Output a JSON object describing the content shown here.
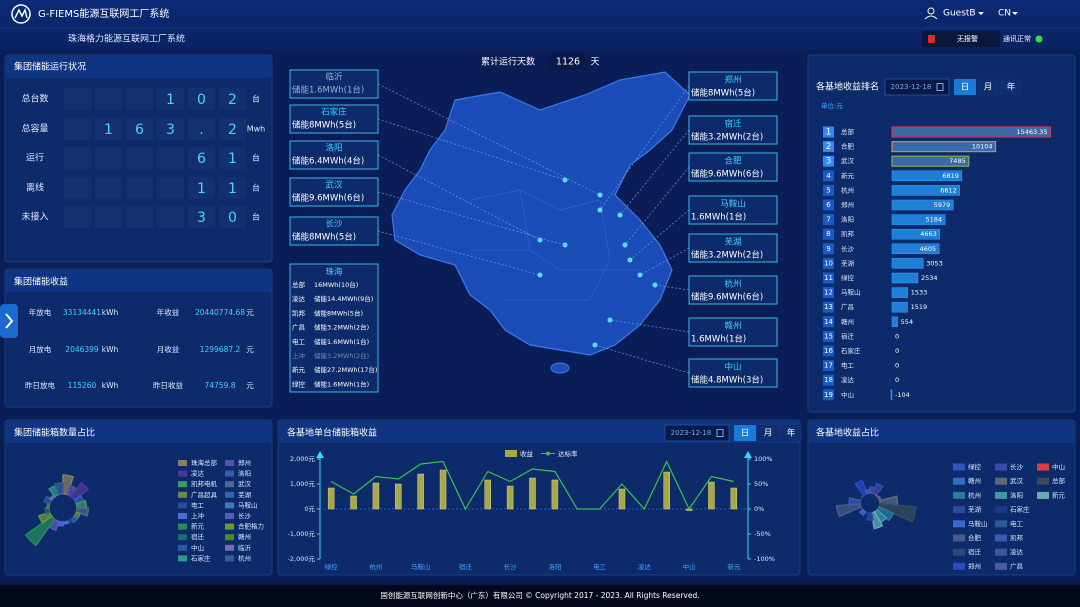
{
  "header": {
    "brand": "G-FIEMS能源互联网工厂系统",
    "subtitle": "珠海格力能源互联网工厂系统",
    "user": "GuestB",
    "language": "CN",
    "alarm": "无报警",
    "communication": "通讯正常"
  },
  "status_panel": {
    "title": "集团储能运行状况",
    "rows": [
      {
        "label": "总台数",
        "digits": [
          "1",
          "0",
          "2"
        ],
        "unit": "台"
      },
      {
        "label": "总容量",
        "digits": [
          "1",
          "6",
          "3",
          ".",
          "2"
        ],
        "unit": "Mwh"
      },
      {
        "label": "运行",
        "digits": [
          "6",
          "1"
        ],
        "unit": "台"
      },
      {
        "label": "离线",
        "digits": [
          "1",
          "1"
        ],
        "unit": "台"
      },
      {
        "label": "未接入",
        "digits": [
          "3",
          "0"
        ],
        "unit": "台"
      }
    ]
  },
  "income_panel": {
    "title": "集团储能收益",
    "items": [
      {
        "label": "年放电",
        "value": 33134441,
        "unit": "kWh"
      },
      {
        "label": "年收益",
        "value": 20440774.68,
        "unit": "元"
      },
      {
        "label": "月放电",
        "value": 2046399,
        "unit": "kWh"
      },
      {
        "label": "月收益",
        "value": 1299687.2,
        "unit": "元"
      },
      {
        "label": "昨日放电",
        "value": 115260,
        "unit": "kWh"
      },
      {
        "label": "昨日收益",
        "value": 74759.8,
        "unit": "元"
      }
    ]
  },
  "map": {
    "days_label": "累计运行天数",
    "days": 1126,
    "days_unit": "天",
    "left_callouts": [
      {
        "city": "临沂",
        "text": "储能1.6MWh(1台)"
      },
      {
        "city": "石家庄",
        "text": "储能8MWh(5台)"
      },
      {
        "city": "洛阳",
        "text": "储能6.4MWh(4台)"
      },
      {
        "city": "武汉",
        "text": "储能9.6MWh(6台)"
      },
      {
        "city": "长沙",
        "text": "储能8MWh(5台)"
      }
    ],
    "right_callouts": [
      {
        "city": "郑州",
        "text": "储能8MWh(5台)"
      },
      {
        "city": "宿迁",
        "text": "储能3.2MWh(2台)"
      },
      {
        "city": "合肥",
        "text": "储能9.6MWh(6台)"
      },
      {
        "city": "马鞍山",
        "text": "1.6MWh(1台)"
      },
      {
        "city": "芜湖",
        "text": "储能3.2MWh(2台)"
      },
      {
        "city": "杭州",
        "text": "储能9.6MWh(6台)"
      },
      {
        "city": "赣州",
        "text": "1.6MWh(1台)"
      },
      {
        "city": "中山",
        "text": "储能4.8MWh(3台)"
      }
    ],
    "zhuhai": {
      "city": "珠海",
      "rows": [
        {
          "site": "总部",
          "text": "16MWh(10台)"
        },
        {
          "site": "凌达",
          "text": "储能14.4MWh(9台)"
        },
        {
          "site": "凯邦",
          "text": "储能8MWh(5台)"
        },
        {
          "site": "广昌",
          "text": "储能3.2MWh(2台)"
        },
        {
          "site": "电工",
          "text": "储能1.6MWh(1台)"
        },
        {
          "site": "上冲",
          "text": "储能3.2MWh(2台)"
        },
        {
          "site": "新元",
          "text": "储能27.2MWh(17台)"
        },
        {
          "site": "绿控",
          "text": "储能1.6MWh(1台)"
        }
      ]
    }
  },
  "chart_data": [
    {
      "type": "pie",
      "title": "集团储能箱数量占比",
      "categories": [
        "珠海总部",
        "郑州",
        "凌达",
        "洛阳",
        "凯邦电机",
        "武汉",
        "广昌超具",
        "芜湖",
        "电工",
        "马鞍山",
        "上冲",
        "长沙",
        "新元",
        "合肥格力",
        "宿迁",
        "赣州",
        "中山",
        "临沂",
        "石家庄",
        "杭州"
      ],
      "values": [
        10,
        5,
        9,
        4,
        5,
        6,
        2,
        2,
        1,
        1,
        2,
        5,
        17,
        6,
        2,
        1,
        3,
        1,
        5,
        6
      ],
      "colors": [
        "#8a8060",
        "#5a4fb0",
        "#4a3a9a",
        "#3a5ab8",
        "#3a9a6a",
        "#4a6a8a",
        "#6a8a4a",
        "#2a6ab0",
        "#2a4a9a",
        "#3a7ac0",
        "#4a6ae0",
        "#5a5ab8",
        "#2a8a5a",
        "#6a9a3a",
        "#1a6a7a",
        "#4a8a2a",
        "#2a5aa0",
        "#7a6ab0",
        "#2a9a8a",
        "#3a5a9a"
      ]
    },
    {
      "type": "bar",
      "orientation": "horizontal",
      "title": "各基地收益排名",
      "date": "2023-12-18",
      "periods": [
        "日",
        "月",
        "年"
      ],
      "unit": "单位:元",
      "ranks": [
        1,
        2,
        3,
        4,
        5,
        6,
        7,
        8,
        9,
        10,
        11,
        12,
        13,
        14,
        15,
        16,
        17,
        18,
        19
      ],
      "categories": [
        "总部",
        "合肥",
        "武汉",
        "新元",
        "杭州",
        "郑州",
        "洛阳",
        "凯邦",
        "长沙",
        "芜湖",
        "绿控",
        "马鞍山",
        "广昌",
        "赣州",
        "宿迁",
        "石家庄",
        "电工",
        "凌达",
        "中山"
      ],
      "values": [
        15463.35,
        10104,
        7485,
        6819,
        6612,
        5979,
        5184,
        4663,
        4605,
        3053,
        2534,
        1533,
        1519,
        554,
        0,
        0,
        0,
        0,
        -104
      ],
      "color": "#1f7fd6",
      "highlight_colors": [
        "#d8304a",
        "#d88a2a",
        "#8aa84a"
      ],
      "xlim": [
        0,
        16000
      ]
    },
    {
      "type": "combo",
      "title": "各基地单台储能箱收益",
      "date": "2023-12-18",
      "periods": [
        "日",
        "月",
        "年"
      ],
      "categories": [
        "绿控",
        null,
        "杭州",
        null,
        "马鞍山",
        null,
        "宿迁",
        null,
        "长沙",
        null,
        "洛阳",
        null,
        "电工",
        null,
        "凌达",
        null,
        "中山",
        null,
        "新元"
      ],
      "series": [
        {
          "name": "收益",
          "type": "bar",
          "color": "#a8a84a",
          "values": [
            840,
            520,
            1040,
            1000,
            1400,
            1560,
            0,
            1160,
            920,
            1240,
            1160,
            0,
            0,
            800,
            0,
            1480,
            -60,
            1080,
            840
          ]
        },
        {
          "name": "达标率",
          "type": "line",
          "color": "#3cc050",
          "axis": "y2",
          "values": [
            55,
            30,
            65,
            60,
            90,
            95,
            0,
            75,
            55,
            80,
            75,
            0,
            0,
            50,
            0,
            95,
            0,
            65,
            55
          ]
        }
      ],
      "ylim": [
        -2000,
        2000
      ],
      "yticks": [
        {
          "value": -2000,
          "label": "-2,000元"
        },
        {
          "value": -1000,
          "label": "-1,000元"
        },
        {
          "value": 0,
          "label": "0元"
        },
        {
          "value": 1000,
          "label": "1,000元"
        },
        {
          "value": 2000,
          "label": "2,000元"
        }
      ],
      "y2lim": [
        -100,
        100
      ],
      "y2ticks": [
        {
          "value": -100,
          "label": "-100%"
        },
        {
          "value": -50,
          "label": "-50%"
        },
        {
          "value": 0,
          "label": "0%"
        },
        {
          "value": 50,
          "label": "50%"
        },
        {
          "value": 100,
          "label": "100%"
        }
      ]
    },
    {
      "type": "pie",
      "title": "各基地收益占比",
      "categories": [
        "绿控",
        "长沙",
        "中山",
        "赣州",
        "武汉",
        "总部",
        "杭州",
        "洛阳",
        "新元",
        "芜湖",
        "石家庄",
        "马鞍山",
        "电工",
        "合肥",
        "凯邦",
        "宿迁",
        "凌达",
        "郑州",
        "广昌"
      ],
      "values": [
        2534,
        4605,
        -104,
        554,
        7485,
        15463.35,
        6612,
        5184,
        6819,
        3053,
        0,
        1533,
        0,
        10104,
        4663,
        0,
        0,
        5979,
        1519
      ],
      "colors": [
        "#2a5ab8",
        "#3a4aa8",
        "#d84040",
        "#3a6ac8",
        "#5a6a7a",
        "#3a4a5a",
        "#2a7a9a",
        "#3a9aa8",
        "#6aa8b8",
        "#2a4aa0",
        "#1a3a88",
        "#3a6ad0",
        "#2a5a98",
        "#4a5a88",
        "#3a5ab0",
        "#2a4a78",
        "#3a5a9a",
        "#2a4ac0",
        "#4a5aa8"
      ]
    }
  ],
  "footer": "国创能源互联网创新中心（广东）有限公司 © Copyright 2017 - 2023. All Rights Reserved."
}
